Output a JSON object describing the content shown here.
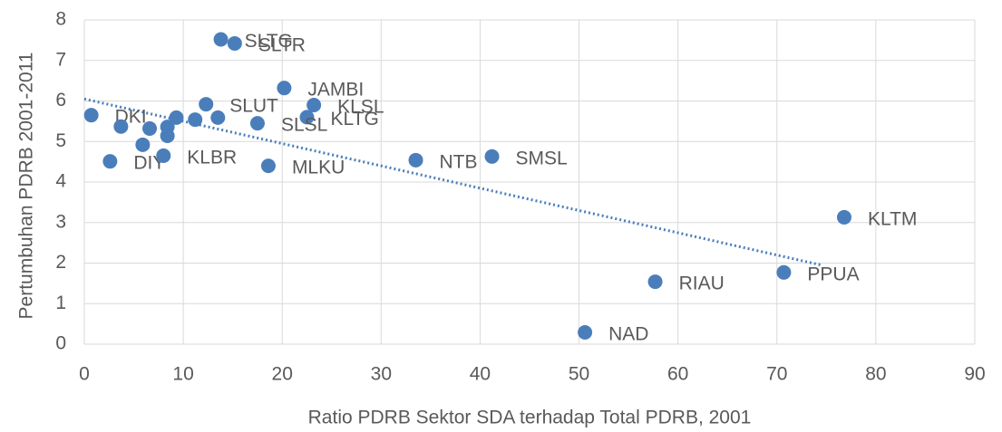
{
  "chart_data": {
    "type": "scatter",
    "xlabel": "Ratio PDRB Sektor SDA terhadap Total PDRB, 2001",
    "ylabel": "Pertumbuhan PDRB 2001-2011",
    "labels": [
      "SLTG",
      "SLTR",
      "JAMBI",
      "KLSL",
      "KLTG",
      "SLUT",
      "SLSL",
      "DKI",
      null,
      "DIY",
      "KLBR",
      null,
      "MLKU",
      "NTB",
      "SMSL",
      "KLTM",
      "PPUA",
      "RIAU",
      "NAD",
      null,
      null,
      null,
      null,
      null,
      null
    ],
    "x": [
      13.8,
      15.2,
      20.2,
      23.2,
      22.5,
      12.3,
      17.5,
      0.7,
      3.7,
      2.6,
      8.0,
      5.9,
      18.6,
      33.5,
      41.2,
      76.8,
      70.7,
      57.7,
      50.6,
      6.6,
      8.4,
      9.3,
      11.2,
      13.5,
      8.4
    ],
    "y": [
      7.52,
      7.42,
      6.32,
      5.9,
      5.6,
      5.92,
      5.45,
      5.65,
      5.37,
      4.51,
      4.65,
      4.92,
      4.4,
      4.54,
      4.63,
      3.13,
      1.77,
      1.54,
      0.29,
      5.32,
      5.14,
      5.59,
      5.54,
      5.59,
      5.36
    ],
    "color": "#4a7ebb",
    "trendline": {
      "x": [
        0,
        74.5
      ],
      "y": [
        6.05,
        1.95
      ]
    },
    "xlim": [
      0,
      90
    ],
    "xticks": [
      0,
      10,
      20,
      30,
      40,
      50,
      60,
      70,
      80,
      90
    ],
    "ylim": [
      0,
      8
    ],
    "yticks": [
      0,
      1,
      2,
      3,
      4,
      5,
      6,
      7,
      8
    ],
    "grid": true
  }
}
